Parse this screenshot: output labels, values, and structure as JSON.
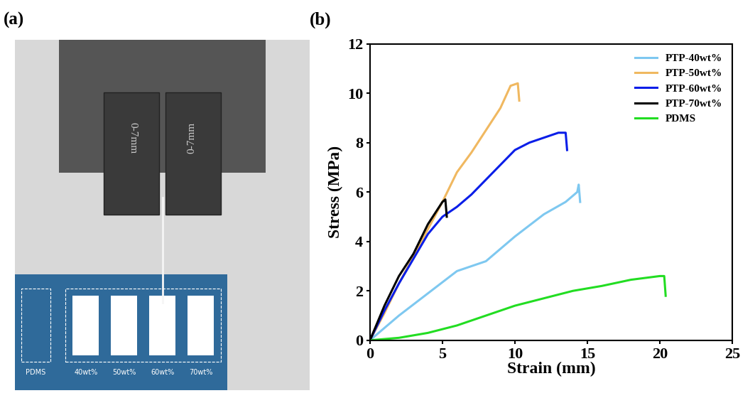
{
  "panel_labels": [
    "(a)",
    "(b)"
  ],
  "photo": {
    "grip_labels": [
      "0-7mm",
      "0-7mm"
    ],
    "sample_labels": [
      "PDMS",
      "40wt%",
      "50wt%",
      "60wt%",
      "70wt%"
    ]
  },
  "chart_data": {
    "type": "line",
    "x_label": "Strain (mm)",
    "y_label": "Stress (MPa)",
    "xlim": [
      0,
      25
    ],
    "ylim": [
      0,
      12
    ],
    "xticks": [
      0,
      5,
      10,
      15,
      20,
      25
    ],
    "yticks": [
      0,
      2,
      4,
      6,
      8,
      10,
      12
    ],
    "legend": "upper right",
    "series": [
      {
        "name": "PTP-40wt%",
        "color": "#7ec8f0",
        "x": [
          0,
          2,
          4,
          6,
          7,
          8,
          10,
          12,
          13.5,
          14.3,
          14.4,
          14.5
        ],
        "values": [
          0,
          1.0,
          1.9,
          2.8,
          3.0,
          3.2,
          4.2,
          5.1,
          5.6,
          6.0,
          6.3,
          5.6
        ]
      },
      {
        "name": "PTP-50wt%",
        "color": "#f0b860",
        "x": [
          0,
          1,
          2,
          3,
          4,
          5,
          6,
          7,
          8,
          9,
          9.7,
          10.2,
          10.3
        ],
        "values": [
          0,
          1.1,
          2.3,
          3.4,
          4.5,
          5.6,
          6.8,
          7.6,
          8.5,
          9.4,
          10.3,
          10.4,
          9.7
        ]
      },
      {
        "name": "PTP-60wt%",
        "color": "#0a1ee8",
        "x": [
          0,
          1,
          2,
          3,
          4,
          5,
          6,
          7,
          8,
          9,
          10,
          11,
          12,
          13,
          13.5,
          13.6
        ],
        "values": [
          0,
          1.2,
          2.3,
          3.3,
          4.3,
          5.0,
          5.4,
          5.9,
          6.5,
          7.1,
          7.7,
          8.0,
          8.2,
          8.4,
          8.4,
          7.7
        ]
      },
      {
        "name": "PTP-70wt%",
        "color": "#000000",
        "x": [
          0,
          1,
          2,
          3,
          4,
          5,
          5.2,
          5.3
        ],
        "values": [
          0,
          1.4,
          2.6,
          3.5,
          4.7,
          5.6,
          5.7,
          5.0
        ]
      },
      {
        "name": "PDMS",
        "color": "#22dd22",
        "x": [
          0,
          2,
          4,
          6,
          8,
          10,
          12,
          14,
          16,
          18,
          20,
          20.3,
          20.4
        ],
        "values": [
          0,
          0.1,
          0.3,
          0.6,
          1.0,
          1.4,
          1.7,
          2.0,
          2.2,
          2.45,
          2.6,
          2.6,
          1.8
        ]
      }
    ]
  }
}
